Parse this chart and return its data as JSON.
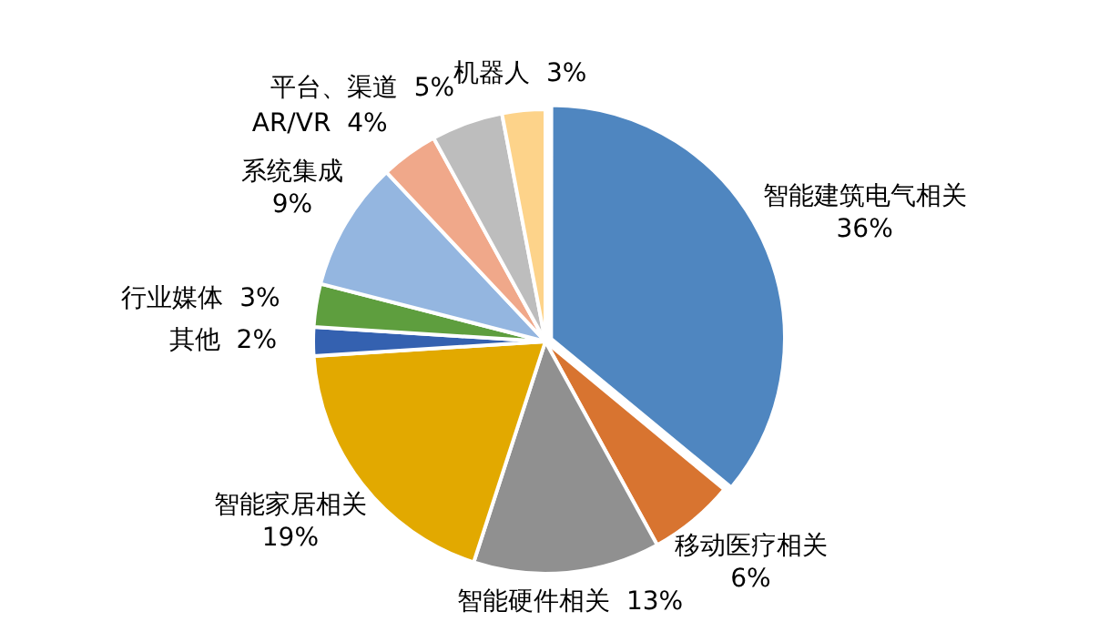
{
  "chart_data": {
    "type": "pie",
    "categories": [
      "智能建筑电气相关",
      "移动医疗相关",
      "智能硬件相关",
      "智能家居相关",
      "其他",
      "行业媒体",
      "系统集成",
      "AR/VR",
      "平台、渠道",
      "机器人"
    ],
    "values": [
      36,
      6,
      13,
      19,
      2,
      3,
      9,
      4,
      5,
      3
    ],
    "colors": [
      "#4f86c0",
      "#d87430",
      "#909090",
      "#e2a900",
      "#3461b0",
      "#5e9e3e",
      "#94b6e0",
      "#f0a88a",
      "#bdbdbd",
      "#fdd38a"
    ],
    "value_labels": [
      "36%",
      "6%",
      "13%",
      "19%",
      "2%",
      "3%",
      "9%",
      "4%",
      "5%",
      "3%"
    ],
    "legend": false
  }
}
